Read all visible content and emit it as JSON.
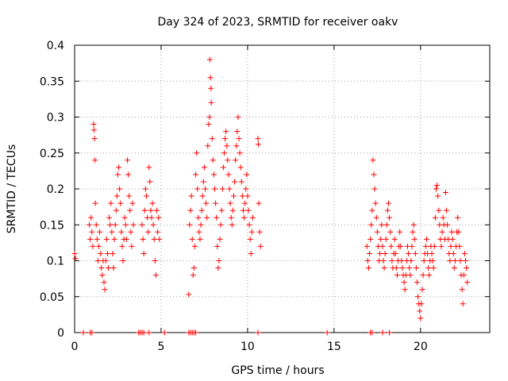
{
  "chart_data": {
    "type": "scatter",
    "title": "Day 324 of 2023, SRMTID for receiver oakv",
    "xlabel": "GPS time / hours",
    "ylabel": "SRMTID / TECUs",
    "xlim": [
      0,
      24
    ],
    "ylim": [
      0,
      0.4
    ],
    "xticks": [
      0,
      5,
      10,
      15,
      20
    ],
    "yticks": [
      0,
      0.05,
      0.1,
      0.15,
      0.2,
      0.25,
      0.3,
      0.35,
      0.4
    ],
    "xtick_labels": [
      "0",
      "5",
      "10",
      "15",
      "20"
    ],
    "ytick_labels": [
      "0",
      "0.05",
      "0.1",
      "0.15",
      "0.2",
      "0.25",
      "0.3",
      "0.35",
      "0.4"
    ],
    "grid": true,
    "marker": "+",
    "color": "#ff0000",
    "series": [
      {
        "name": "SRMTID",
        "points": [
          [
            0.0,
            0.11
          ],
          [
            0.05,
            0.103
          ],
          [
            0.85,
            0.15
          ],
          [
            0.9,
            0.13
          ],
          [
            0.95,
            0.16
          ],
          [
            1.0,
            0.14
          ],
          [
            1.05,
            0.12
          ],
          [
            1.1,
            0.29
          ],
          [
            1.12,
            0.282
          ],
          [
            1.15,
            0.27
          ],
          [
            1.18,
            0.24
          ],
          [
            1.2,
            0.18
          ],
          [
            1.25,
            0.15
          ],
          [
            1.3,
            0.13
          ],
          [
            1.35,
            0.1
          ],
          [
            1.4,
            0.12
          ],
          [
            1.45,
            0.14
          ],
          [
            1.5,
            0.11
          ],
          [
            1.55,
            0.09
          ],
          [
            1.6,
            0.08
          ],
          [
            1.65,
            0.1
          ],
          [
            1.7,
            0.07
          ],
          [
            1.75,
            0.06
          ],
          [
            1.8,
            0.1
          ],
          [
            1.85,
            0.13
          ],
          [
            1.9,
            0.11
          ],
          [
            1.95,
            0.09
          ],
          [
            2.0,
            0.16
          ],
          [
            2.05,
            0.15
          ],
          [
            2.1,
            0.18
          ],
          [
            2.15,
            0.14
          ],
          [
            2.2,
            0.11
          ],
          [
            2.25,
            0.09
          ],
          [
            2.3,
            0.13
          ],
          [
            2.35,
            0.15
          ],
          [
            2.4,
            0.17
          ],
          [
            2.45,
            0.19
          ],
          [
            2.5,
            0.22
          ],
          [
            2.55,
            0.23
          ],
          [
            2.6,
            0.2
          ],
          [
            2.65,
            0.18
          ],
          [
            2.7,
            0.14
          ],
          [
            2.75,
            0.12
          ],
          [
            2.8,
            0.1
          ],
          [
            2.85,
            0.13
          ],
          [
            2.9,
            0.16
          ],
          [
            2.95,
            0.15
          ],
          [
            3.0,
            0.13
          ],
          [
            3.05,
            0.24
          ],
          [
            3.1,
            0.22
          ],
          [
            3.15,
            0.19
          ],
          [
            3.2,
            0.17
          ],
          [
            3.25,
            0.14
          ],
          [
            3.3,
            0.12
          ],
          [
            3.35,
            0.18
          ],
          [
            3.4,
            0.15
          ],
          [
            3.9,
            0.15
          ],
          [
            3.95,
            0.13
          ],
          [
            4.0,
            0.11
          ],
          [
            4.05,
            0.17
          ],
          [
            4.1,
            0.2
          ],
          [
            4.15,
            0.19
          ],
          [
            4.2,
            0.16
          ],
          [
            4.25,
            0.14
          ],
          [
            4.3,
            0.23
          ],
          [
            4.35,
            0.21
          ],
          [
            4.4,
            0.17
          ],
          [
            4.45,
            0.16
          ],
          [
            4.5,
            0.18
          ],
          [
            4.55,
            0.15
          ],
          [
            4.6,
            0.13
          ],
          [
            4.65,
            0.1
          ],
          [
            4.7,
            0.08
          ],
          [
            4.75,
            0.17
          ],
          [
            4.8,
            0.14
          ],
          [
            4.85,
            0.16
          ],
          [
            4.9,
            0.13
          ],
          [
            6.6,
            0.053
          ],
          [
            6.65,
            0.15
          ],
          [
            6.7,
            0.17
          ],
          [
            6.75,
            0.19
          ],
          [
            6.8,
            0.13
          ],
          [
            6.85,
            0.08
          ],
          [
            6.9,
            0.09
          ],
          [
            6.95,
            0.12
          ],
          [
            7.0,
            0.22
          ],
          [
            7.05,
            0.25
          ],
          [
            7.1,
            0.2
          ],
          [
            7.15,
            0.16
          ],
          [
            7.2,
            0.14
          ],
          [
            7.25,
            0.13
          ],
          [
            7.3,
            0.15
          ],
          [
            7.35,
            0.17
          ],
          [
            7.4,
            0.19
          ],
          [
            7.45,
            0.21
          ],
          [
            7.5,
            0.23
          ],
          [
            7.55,
            0.2
          ],
          [
            7.6,
            0.18
          ],
          [
            7.65,
            0.16
          ],
          [
            7.7,
            0.26
          ],
          [
            7.75,
            0.29
          ],
          [
            7.8,
            0.3
          ],
          [
            7.82,
            0.38
          ],
          [
            7.85,
            0.355
          ],
          [
            7.88,
            0.34
          ],
          [
            7.9,
            0.32
          ],
          [
            7.95,
            0.27
          ],
          [
            8.0,
            0.24
          ],
          [
            8.05,
            0.22
          ],
          [
            8.1,
            0.2
          ],
          [
            8.15,
            0.18
          ],
          [
            8.2,
            0.16
          ],
          [
            8.25,
            0.12
          ],
          [
            8.3,
            0.09
          ],
          [
            8.35,
            0.1
          ],
          [
            8.4,
            0.13
          ],
          [
            8.45,
            0.15
          ],
          [
            8.5,
            0.17
          ],
          [
            8.55,
            0.2
          ],
          [
            8.6,
            0.23
          ],
          [
            8.65,
            0.25
          ],
          [
            8.7,
            0.27
          ],
          [
            8.75,
            0.28
          ],
          [
            8.8,
            0.26
          ],
          [
            8.85,
            0.24
          ],
          [
            8.9,
            0.22
          ],
          [
            8.95,
            0.2
          ],
          [
            9.0,
            0.18
          ],
          [
            9.05,
            0.16
          ],
          [
            9.1,
            0.15
          ],
          [
            9.15,
            0.17
          ],
          [
            9.2,
            0.19
          ],
          [
            9.25,
            0.21
          ],
          [
            9.3,
            0.24
          ],
          [
            9.35,
            0.26
          ],
          [
            9.4,
            0.28
          ],
          [
            9.45,
            0.3
          ],
          [
            9.5,
            0.27
          ],
          [
            9.55,
            0.25
          ],
          [
            9.6,
            0.23
          ],
          [
            9.65,
            0.21
          ],
          [
            9.7,
            0.19
          ],
          [
            9.75,
            0.17
          ],
          [
            9.8,
            0.16
          ],
          [
            9.85,
            0.18
          ],
          [
            9.9,
            0.2
          ],
          [
            9.95,
            0.22
          ],
          [
            10.0,
            0.19
          ],
          [
            10.05,
            0.17
          ],
          [
            10.1,
            0.15
          ],
          [
            10.15,
            0.13
          ],
          [
            10.2,
            0.11
          ],
          [
            10.25,
            0.14
          ],
          [
            10.3,
            0.16
          ],
          [
            10.6,
            0.27
          ],
          [
            10.62,
            0.262
          ],
          [
            10.65,
            0.18
          ],
          [
            10.7,
            0.14
          ],
          [
            10.75,
            0.12
          ],
          [
            16.9,
            0.12
          ],
          [
            16.95,
            0.1
          ],
          [
            17.0,
            0.09
          ],
          [
            17.05,
            0.11
          ],
          [
            17.1,
            0.13
          ],
          [
            17.15,
            0.15
          ],
          [
            17.2,
            0.17
          ],
          [
            17.25,
            0.24
          ],
          [
            17.3,
            0.22
          ],
          [
            17.35,
            0.2
          ],
          [
            17.4,
            0.18
          ],
          [
            17.45,
            0.16
          ],
          [
            17.5,
            0.14
          ],
          [
            17.55,
            0.12
          ],
          [
            17.6,
            0.1
          ],
          [
            17.65,
            0.11
          ],
          [
            17.7,
            0.13
          ],
          [
            17.75,
            0.15
          ],
          [
            17.8,
            0.12
          ],
          [
            17.85,
            0.1
          ],
          [
            17.9,
            0.09
          ],
          [
            17.95,
            0.11
          ],
          [
            18.0,
            0.13
          ],
          [
            18.05,
            0.15
          ],
          [
            18.1,
            0.17
          ],
          [
            18.15,
            0.18
          ],
          [
            18.2,
            0.16
          ],
          [
            18.25,
            0.14
          ],
          [
            18.3,
            0.12
          ],
          [
            18.35,
            0.1
          ],
          [
            18.4,
            0.09
          ],
          [
            18.45,
            0.11
          ],
          [
            18.5,
            0.13
          ],
          [
            18.55,
            0.11
          ],
          [
            18.6,
            0.09
          ],
          [
            18.65,
            0.08
          ],
          [
            18.7,
            0.1
          ],
          [
            18.75,
            0.12
          ],
          [
            18.8,
            0.14
          ],
          [
            18.85,
            0.12
          ],
          [
            18.9,
            0.1
          ],
          [
            18.95,
            0.09
          ],
          [
            19.0,
            0.08
          ],
          [
            19.05,
            0.07
          ],
          [
            19.1,
            0.06
          ],
          [
            19.15,
            0.08
          ],
          [
            19.2,
            0.1
          ],
          [
            19.25,
            0.12
          ],
          [
            19.3,
            0.11
          ],
          [
            19.35,
            0.09
          ],
          [
            19.4,
            0.08
          ],
          [
            19.45,
            0.1
          ],
          [
            19.5,
            0.12
          ],
          [
            19.55,
            0.14
          ],
          [
            19.6,
            0.15
          ],
          [
            19.65,
            0.13
          ],
          [
            19.7,
            0.11
          ],
          [
            19.75,
            0.09
          ],
          [
            19.8,
            0.07
          ],
          [
            19.85,
            0.05
          ],
          [
            19.9,
            0.04
          ],
          [
            19.95,
            0.03
          ],
          [
            20.0,
            0.02
          ],
          [
            20.05,
            0.04
          ],
          [
            20.1,
            0.06
          ],
          [
            20.15,
            0.08
          ],
          [
            20.2,
            0.1
          ],
          [
            20.25,
            0.11
          ],
          [
            20.3,
            0.12
          ],
          [
            20.35,
            0.13
          ],
          [
            20.4,
            0.11
          ],
          [
            20.45,
            0.09
          ],
          [
            20.5,
            0.08
          ],
          [
            20.55,
            0.1
          ],
          [
            20.6,
            0.12
          ],
          [
            20.65,
            0.11
          ],
          [
            20.7,
            0.1
          ],
          [
            20.75,
            0.09
          ],
          [
            20.8,
            0.12
          ],
          [
            20.85,
            0.16
          ],
          [
            20.9,
            0.2
          ],
          [
            20.95,
            0.205
          ],
          [
            21.0,
            0.19
          ],
          [
            21.05,
            0.17
          ],
          [
            21.1,
            0.15
          ],
          [
            21.15,
            0.13
          ],
          [
            21.2,
            0.12
          ],
          [
            21.25,
            0.14
          ],
          [
            21.3,
            0.16
          ],
          [
            21.35,
            0.15
          ],
          [
            21.4,
            0.13
          ],
          [
            21.45,
            0.195
          ],
          [
            21.5,
            0.17
          ],
          [
            21.55,
            0.15
          ],
          [
            21.6,
            0.13
          ],
          [
            21.65,
            0.11
          ],
          [
            21.7,
            0.1
          ],
          [
            21.75,
            0.12
          ],
          [
            21.8,
            0.14
          ],
          [
            21.85,
            0.13
          ],
          [
            21.9,
            0.11
          ],
          [
            21.95,
            0.09
          ],
          [
            22.0,
            0.1
          ],
          [
            22.05,
            0.12
          ],
          [
            22.1,
            0.14
          ],
          [
            22.15,
            0.16
          ],
          [
            22.2,
            0.14
          ],
          [
            22.25,
            0.12
          ],
          [
            22.3,
            0.1
          ],
          [
            22.35,
            0.08
          ],
          [
            22.4,
            0.06
          ],
          [
            22.45,
            0.04
          ],
          [
            22.5,
            0.08
          ],
          [
            22.55,
            0.11
          ],
          [
            22.6,
            0.1
          ],
          [
            22.65,
            0.09
          ],
          [
            22.7,
            0.07
          ]
        ],
        "zero_points": [
          [
            0.5,
            0
          ],
          [
            0.9,
            0
          ],
          [
            1.0,
            0
          ],
          [
            3.7,
            0
          ],
          [
            3.8,
            0
          ],
          [
            3.9,
            0
          ],
          [
            4.0,
            0
          ],
          [
            4.3,
            0
          ],
          [
            5.2,
            0
          ],
          [
            6.6,
            0
          ],
          [
            6.7,
            0
          ],
          [
            6.8,
            0
          ],
          [
            6.9,
            0
          ],
          [
            7.0,
            0
          ],
          [
            10.6,
            0
          ],
          [
            14.6,
            0
          ],
          [
            17.1,
            0
          ],
          [
            17.2,
            0
          ],
          [
            17.8,
            0
          ],
          [
            18.2,
            0
          ]
        ]
      }
    ]
  }
}
